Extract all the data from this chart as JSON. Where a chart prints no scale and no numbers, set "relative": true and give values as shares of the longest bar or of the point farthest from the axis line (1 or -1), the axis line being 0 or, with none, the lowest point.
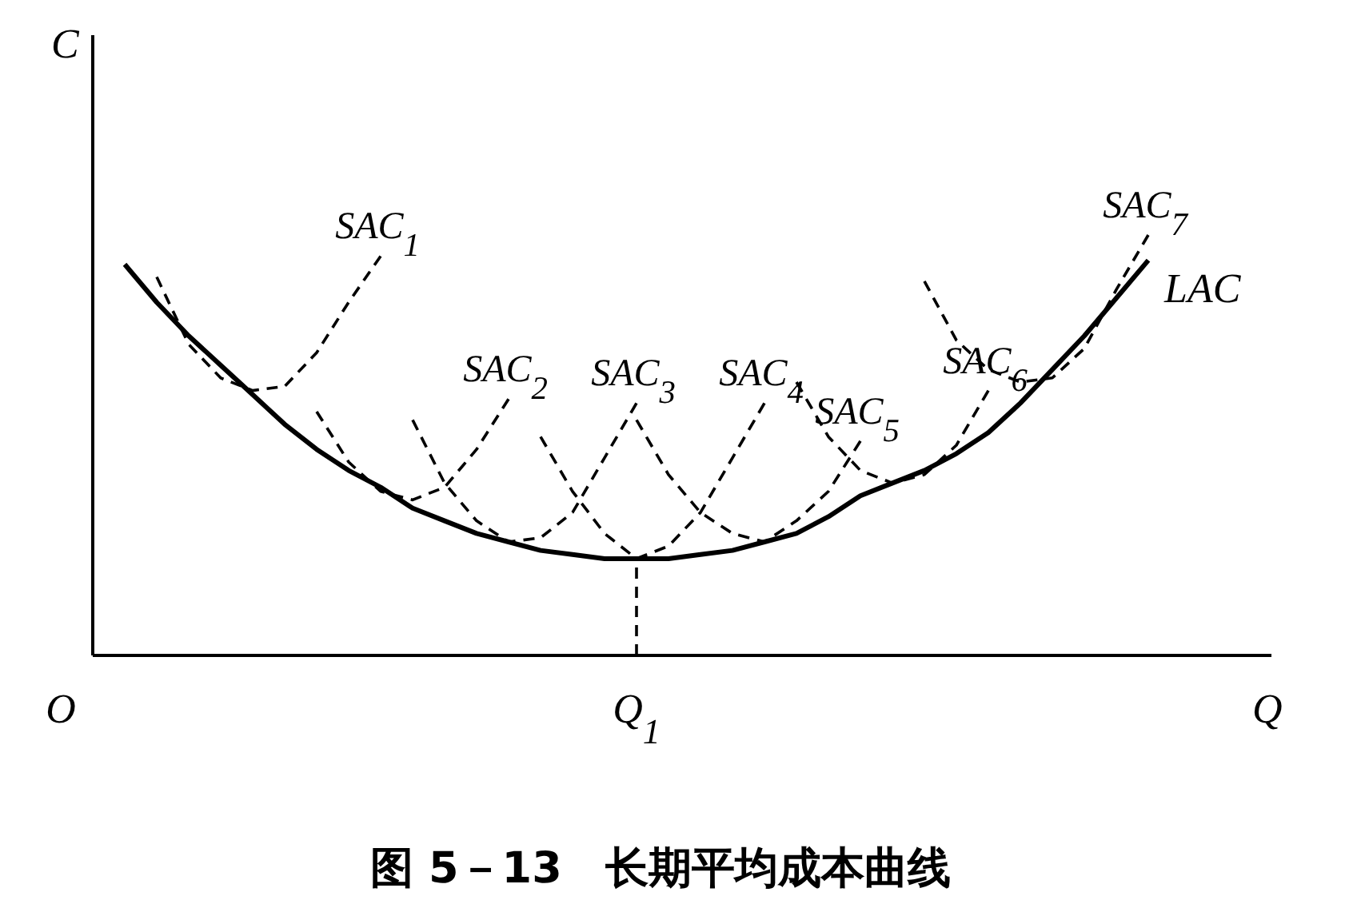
{
  "chart_data": {
    "type": "line",
    "title": "图 5－13　长期平均成本曲线",
    "xlabel": "Q",
    "ylabel": "C",
    "relative": true,
    "categories": [
      "O",
      null,
      null,
      null,
      null,
      null,
      null,
      null,
      null,
      null,
      null,
      null,
      null,
      null,
      null,
      null,
      null,
      null,
      "Q$_{1}$",
      null,
      null,
      null,
      null,
      null,
      null,
      null,
      null,
      null,
      null,
      null,
      null,
      null,
      null,
      null,
      null,
      null,
      null,
      null,
      null
    ],
    "ref_lines": [
      {
        "axis": "x",
        "value": "Q$_{1}$",
        "line_style": "dashed"
      }
    ],
    "series": [
      {
        "name": "LAC",
        "color": "#000000",
        "line_style": "solid",
        "values": [
          null,
          null,
          0.93,
          0.84,
          0.76,
          0.69,
          0.62,
          0.55,
          0.49,
          0.44,
          0.4,
          0.35,
          0.32,
          0.29,
          0.27,
          0.25,
          0.24,
          0.23,
          0.23,
          0.23,
          0.24,
          0.25,
          0.27,
          0.29,
          0.33,
          0.38,
          0.41,
          0.44,
          0.48,
          0.53,
          0.6,
          0.68,
          0.76,
          0.85,
          0.94,
          null,
          null,
          null,
          null
        ]
      },
      {
        "name": "SAC$_{1}$",
        "color": "#000000",
        "line_style": "dashed",
        "values": [
          null,
          null,
          null,
          0.9,
          0.74,
          0.66,
          0.63,
          0.64,
          0.72,
          0.84,
          0.95,
          null,
          null,
          null,
          null,
          null,
          null,
          null,
          null,
          null,
          null,
          null,
          null,
          null,
          null,
          null,
          null,
          null,
          null,
          null,
          null,
          null,
          null,
          null,
          null,
          null,
          null,
          null,
          null
        ]
      },
      {
        "name": "SAC$_{2}$",
        "color": "#000000",
        "line_style": "dashed",
        "values": [
          null,
          null,
          null,
          null,
          null,
          null,
          null,
          null,
          0.58,
          0.46,
          0.39,
          0.37,
          0.4,
          0.49,
          0.61,
          null,
          null,
          null,
          null,
          null,
          null,
          null,
          null,
          null,
          null,
          null,
          null,
          null,
          null,
          null,
          null,
          null,
          null,
          null,
          null,
          null,
          null,
          null,
          null
        ]
      },
      {
        "name": "SAC$_{3}$",
        "color": "#000000",
        "line_style": "dashed",
        "values": [
          null,
          null,
          null,
          null,
          null,
          null,
          null,
          null,
          null,
          null,
          null,
          0.56,
          0.41,
          0.32,
          0.27,
          0.28,
          0.34,
          0.47,
          0.6,
          null,
          null,
          null,
          null,
          null,
          null,
          null,
          null,
          null,
          null,
          null,
          null,
          null,
          null,
          null,
          null,
          null,
          null,
          null,
          null
        ]
      },
      {
        "name": "SAC$_{4}$",
        "color": "#000000",
        "line_style": "dashed",
        "values": [
          null,
          null,
          null,
          null,
          null,
          null,
          null,
          null,
          null,
          null,
          null,
          null,
          null,
          null,
          null,
          0.52,
          0.39,
          0.29,
          0.23,
          0.26,
          0.34,
          0.47,
          0.6,
          null,
          null,
          null,
          null,
          null,
          null,
          null,
          null,
          null,
          null,
          null,
          null,
          null,
          null,
          null,
          null
        ]
      },
      {
        "name": "SAC$_{5}$",
        "color": "#000000",
        "line_style": "dashed",
        "values": [
          null,
          null,
          null,
          null,
          null,
          null,
          null,
          null,
          null,
          null,
          null,
          null,
          null,
          null,
          null,
          null,
          null,
          null,
          0.56,
          0.43,
          0.34,
          0.29,
          0.27,
          0.32,
          0.39,
          0.51,
          null,
          null,
          null,
          null,
          null,
          null,
          null,
          null,
          null,
          null,
          null,
          null,
          null
        ]
      },
      {
        "name": "SAC$_{6}$",
        "color": "#000000",
        "line_style": "dashed",
        "values": [
          null,
          null,
          null,
          null,
          null,
          null,
          null,
          null,
          null,
          null,
          null,
          null,
          null,
          null,
          null,
          null,
          null,
          null,
          null,
          null,
          null,
          null,
          null,
          0.65,
          0.52,
          0.44,
          0.41,
          0.43,
          0.5,
          0.63,
          null,
          null,
          null,
          null,
          null,
          null,
          null,
          null,
          null
        ]
      },
      {
        "name": "SAC$_{7}$",
        "color": "#000000",
        "line_style": "dashed",
        "values": [
          null,
          null,
          null,
          null,
          null,
          null,
          null,
          null,
          null,
          null,
          null,
          null,
          null,
          null,
          null,
          null,
          null,
          null,
          null,
          null,
          null,
          null,
          null,
          null,
          null,
          null,
          null,
          0.89,
          0.75,
          0.68,
          0.65,
          0.66,
          0.73,
          0.87,
          1.0,
          null,
          null,
          null,
          null
        ]
      }
    ]
  }
}
